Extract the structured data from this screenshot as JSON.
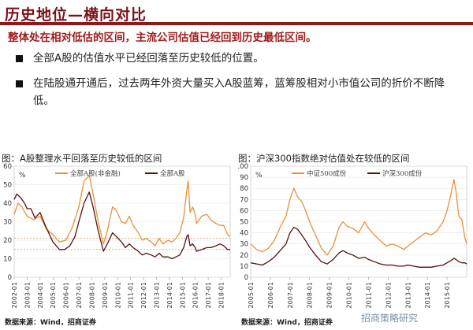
{
  "header": {
    "title": "历史地位—横向对比",
    "subtitle": "整体处在相对低估的区间，主流公司估值已经回到历史最低区间。"
  },
  "bullets": [
    "全部A股的估值水平已经回落至历史较低的位置。",
    "在陆股通开通后，过去两年外资大量买入A股蓝筹，蓝筹股相对小市值公司的折价不断降低。"
  ],
  "watermark": "招商策略研究",
  "colors": {
    "accent": "#8b1a1a",
    "orange": "#e8913a",
    "maroon": "#5a1010"
  },
  "chart_data": [
    {
      "type": "line",
      "title": "图：A股整理水平回落至历史较低的区间",
      "ylabel": "%",
      "ylim": [
        0,
        60
      ],
      "yticks": [
        0,
        10,
        20,
        30,
        40,
        50,
        60
      ],
      "xlim": [
        2002,
        2018.7
      ],
      "xticks": [
        "2002-01",
        "2003-01",
        "2004-01",
        "2005-01",
        "2006-01",
        "2007-01",
        "2008-01",
        "2009-01",
        "2010-01",
        "2011-01",
        "2012-01",
        "2013-01",
        "2014-01",
        "2015-01",
        "2016-01",
        "2017-01",
        "2018-01"
      ],
      "legend": "top",
      "hlines": [
        21,
        15
      ],
      "source": "数据来源：Wind，招商证券",
      "series": [
        {
          "name": "全部A股(非金融)",
          "color": "#e8913a",
          "points": [
            [
              2002.0,
              34
            ],
            [
              2002.3,
              40
            ],
            [
              2002.6,
              38
            ],
            [
              2003.0,
              33
            ],
            [
              2003.5,
              31
            ],
            [
              2004.0,
              33
            ],
            [
              2004.5,
              26
            ],
            [
              2005.0,
              23
            ],
            [
              2005.5,
              19
            ],
            [
              2006.0,
              20
            ],
            [
              2006.5,
              27
            ],
            [
              2007.0,
              38
            ],
            [
              2007.4,
              52
            ],
            [
              2007.8,
              55
            ],
            [
              2008.1,
              45
            ],
            [
              2008.5,
              30
            ],
            [
              2008.9,
              18
            ],
            [
              2009.2,
              25
            ],
            [
              2009.6,
              38
            ],
            [
              2009.9,
              36
            ],
            [
              2010.3,
              30
            ],
            [
              2010.6,
              29
            ],
            [
              2010.9,
              33
            ],
            [
              2011.2,
              28
            ],
            [
              2011.6,
              24
            ],
            [
              2011.9,
              20
            ],
            [
              2012.2,
              21
            ],
            [
              2012.6,
              19
            ],
            [
              2012.9,
              17
            ],
            [
              2013.2,
              21
            ],
            [
              2013.5,
              18
            ],
            [
              2013.9,
              20
            ],
            [
              2014.2,
              19
            ],
            [
              2014.5,
              21
            ],
            [
              2014.8,
              24
            ],
            [
              2015.1,
              32
            ],
            [
              2015.35,
              47
            ],
            [
              2015.45,
              52
            ],
            [
              2015.6,
              35
            ],
            [
              2015.8,
              38
            ],
            [
              2016.0,
              34
            ],
            [
              2016.1,
              29
            ],
            [
              2016.5,
              33
            ],
            [
              2016.9,
              34
            ],
            [
              2017.2,
              31
            ],
            [
              2017.6,
              29
            ],
            [
              2017.9,
              28
            ],
            [
              2018.2,
              28
            ],
            [
              2018.5,
              23
            ],
            [
              2018.7,
              22
            ]
          ]
        },
        {
          "name": "全部A股",
          "color": "#5a1010",
          "points": [
            [
              2002.0,
              42
            ],
            [
              2002.2,
              45
            ],
            [
              2002.5,
              43
            ],
            [
              2002.8,
              40
            ],
            [
              2003.0,
              37
            ],
            [
              2003.3,
              37
            ],
            [
              2003.6,
              32
            ],
            [
              2004.0,
              35
            ],
            [
              2004.4,
              28
            ],
            [
              2004.8,
              22
            ],
            [
              2005.0,
              19
            ],
            [
              2005.5,
              15
            ],
            [
              2005.9,
              15
            ],
            [
              2006.3,
              17
            ],
            [
              2006.7,
              22
            ],
            [
              2007.0,
              30
            ],
            [
              2007.4,
              40
            ],
            [
              2007.8,
              46
            ],
            [
              2008.1,
              38
            ],
            [
              2008.5,
              25
            ],
            [
              2008.9,
              14
            ],
            [
              2009.2,
              18
            ],
            [
              2009.6,
              24
            ],
            [
              2009.9,
              22
            ],
            [
              2010.3,
              19
            ],
            [
              2010.6,
              16
            ],
            [
              2010.9,
              18
            ],
            [
              2011.2,
              16
            ],
            [
              2011.6,
              14
            ],
            [
              2011.9,
              12
            ],
            [
              2012.2,
              13
            ],
            [
              2012.6,
              12
            ],
            [
              2012.9,
              11
            ],
            [
              2013.2,
              13
            ],
            [
              2013.5,
              11
            ],
            [
              2013.9,
              11
            ],
            [
              2014.2,
              10
            ],
            [
              2014.5,
              11
            ],
            [
              2014.8,
              12
            ],
            [
              2015.1,
              16
            ],
            [
              2015.35,
              22
            ],
            [
              2015.45,
              23
            ],
            [
              2015.6,
              17
            ],
            [
              2015.8,
              18
            ],
            [
              2016.0,
              16
            ],
            [
              2016.1,
              14
            ],
            [
              2016.5,
              15
            ],
            [
              2016.9,
              16
            ],
            [
              2017.2,
              16
            ],
            [
              2017.6,
              17
            ],
            [
              2017.9,
              18
            ],
            [
              2018.2,
              17
            ],
            [
              2018.5,
              15
            ],
            [
              2018.7,
              15
            ]
          ]
        }
      ]
    },
    {
      "type": "line",
      "title": "图：沪深300指数绝对估值处在较低的区间",
      "ylabel": "%",
      "ylim": [
        0,
        100
      ],
      "yticks": [
        0,
        10,
        20,
        30,
        40,
        50,
        60,
        70,
        80,
        90,
        100
      ],
      "xlim": [
        2005,
        2016
      ],
      "xticks": [
        "2005-01",
        "2006-01",
        "2007-01",
        "2008-01",
        "2009-01",
        "2010-01",
        "2011-01",
        "2012-01",
        "2013-01",
        "2014-01",
        "2015-01"
      ],
      "legend": "top",
      "source": "数据来源：Wind，招商证券",
      "series": [
        {
          "name": "中证500成份",
          "color": "#e8913a",
          "points": [
            [
              2005.0,
              30
            ],
            [
              2005.3,
              25
            ],
            [
              2005.6,
              23
            ],
            [
              2005.9,
              26
            ],
            [
              2006.2,
              33
            ],
            [
              2006.5,
              45
            ],
            [
              2006.8,
              55
            ],
            [
              2007.0,
              70
            ],
            [
              2007.2,
              80
            ],
            [
              2007.4,
              72
            ],
            [
              2007.6,
              68
            ],
            [
              2007.8,
              60
            ],
            [
              2008.0,
              50
            ],
            [
              2008.3,
              38
            ],
            [
              2008.6,
              26
            ],
            [
              2008.9,
              20
            ],
            [
              2009.2,
              28
            ],
            [
              2009.5,
              45
            ],
            [
              2009.7,
              50
            ],
            [
              2009.9,
              46
            ],
            [
              2010.2,
              44
            ],
            [
              2010.5,
              40
            ],
            [
              2010.8,
              50
            ],
            [
              2011.0,
              44
            ],
            [
              2011.3,
              38
            ],
            [
              2011.6,
              33
            ],
            [
              2011.9,
              28
            ],
            [
              2012.2,
              30
            ],
            [
              2012.5,
              28
            ],
            [
              2012.8,
              25
            ],
            [
              2013.0,
              28
            ],
            [
              2013.3,
              32
            ],
            [
              2013.6,
              36
            ],
            [
              2013.9,
              40
            ],
            [
              2014.2,
              38
            ],
            [
              2014.5,
              42
            ],
            [
              2014.8,
              50
            ],
            [
              2015.0,
              60
            ],
            [
              2015.2,
              75
            ],
            [
              2015.35,
              88
            ],
            [
              2015.45,
              78
            ],
            [
              2015.6,
              55
            ],
            [
              2015.75,
              52
            ],
            [
              2015.9,
              36
            ],
            [
              2016.0,
              30
            ]
          ]
        },
        {
          "name": "沪深300成份",
          "color": "#5a1010",
          "points": [
            [
              2005.0,
              13
            ],
            [
              2005.3,
              12
            ],
            [
              2005.6,
              11
            ],
            [
              2005.9,
              14
            ],
            [
              2006.2,
              18
            ],
            [
              2006.5,
              24
            ],
            [
              2006.8,
              30
            ],
            [
              2007.0,
              40
            ],
            [
              2007.2,
              45
            ],
            [
              2007.4,
              43
            ],
            [
              2007.6,
              38
            ],
            [
              2007.8,
              33
            ],
            [
              2008.0,
              27
            ],
            [
              2008.3,
              20
            ],
            [
              2008.6,
              14
            ],
            [
              2008.9,
              12
            ],
            [
              2009.2,
              16
            ],
            [
              2009.5,
              22
            ],
            [
              2009.7,
              24
            ],
            [
              2009.9,
              22
            ],
            [
              2010.2,
              20
            ],
            [
              2010.5,
              17
            ],
            [
              2010.8,
              18
            ],
            [
              2011.0,
              16
            ],
            [
              2011.3,
              14
            ],
            [
              2011.6,
              12
            ],
            [
              2011.9,
              11
            ],
            [
              2012.2,
              11
            ],
            [
              2012.5,
              10
            ],
            [
              2012.8,
              10
            ],
            [
              2013.0,
              11
            ],
            [
              2013.3,
              10
            ],
            [
              2013.6,
              9
            ],
            [
              2013.9,
              9
            ],
            [
              2014.2,
              9
            ],
            [
              2014.5,
              10
            ],
            [
              2014.8,
              11
            ],
            [
              2015.0,
              13
            ],
            [
              2015.2,
              15
            ],
            [
              2015.35,
              17
            ],
            [
              2015.45,
              16
            ],
            [
              2015.6,
              14
            ],
            [
              2015.75,
              13
            ],
            [
              2015.9,
              13
            ],
            [
              2016.0,
              12
            ]
          ]
        }
      ]
    }
  ]
}
